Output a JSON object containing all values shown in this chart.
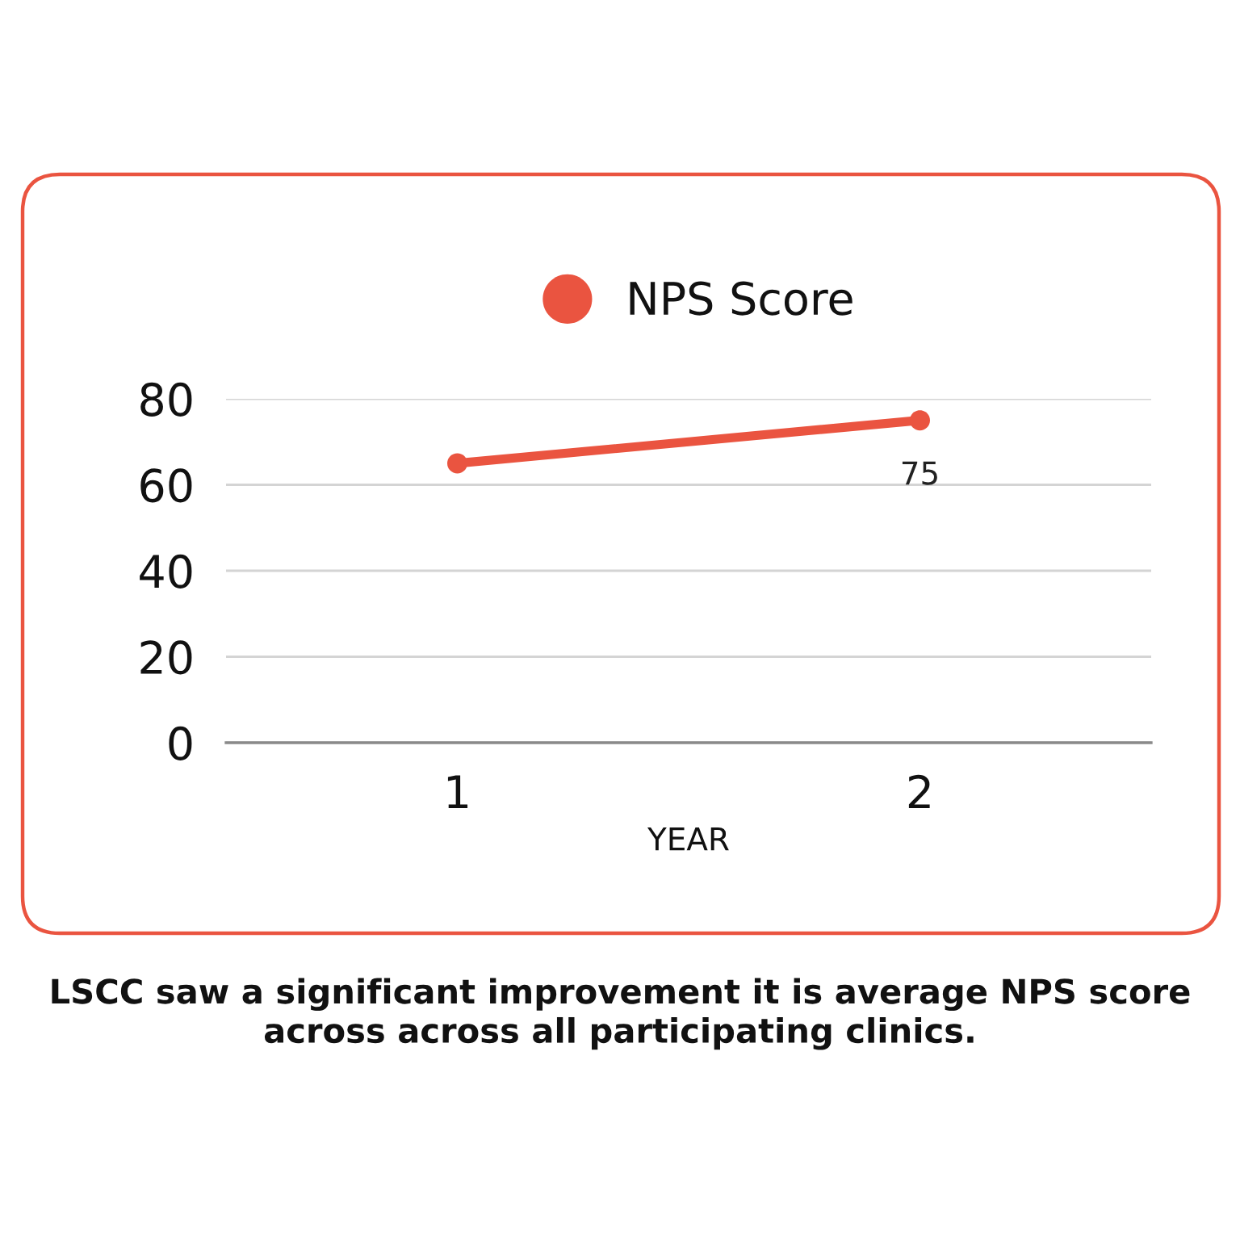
{
  "chart_data": {
    "type": "line",
    "categories": [
      "1",
      "2"
    ],
    "xlabel": "YEAR",
    "series": [
      {
        "name": "NPS Score",
        "color": "#ea5440",
        "values": [
          65,
          75
        ],
        "value_labels": [
          null,
          "75"
        ]
      }
    ],
    "ylim": [
      0,
      80
    ],
    "yticks": [
      0,
      20,
      40,
      60,
      80
    ],
    "grid": "y",
    "legend": "top",
    "marker": "circle",
    "line_style": "solid",
    "annotations": [
      "LSCC saw a significant improvement it is average NPS score across across all participating clinics."
    ]
  }
}
